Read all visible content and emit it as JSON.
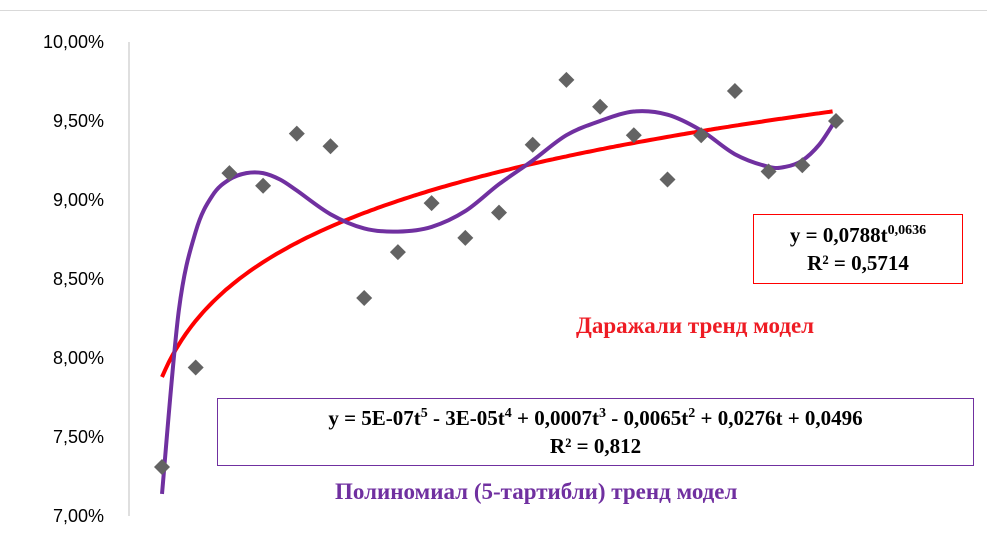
{
  "colors": {
    "points": "#636363",
    "power_trend": "#ff0000",
    "poly_trend": "#7030a0",
    "axis": "#bfbfbf"
  },
  "chart_data": {
    "type": "scatter",
    "title": "",
    "xlabel": "",
    "ylabel": "",
    "ylim": [
      0.07,
      0.1
    ],
    "xlim": [
      1,
      21
    ],
    "y_ticks": [
      "7,00%",
      "7,50%",
      "8,00%",
      "8,50%",
      "9,00%",
      "9,50%",
      "10,00%"
    ],
    "y_tick_values": [
      0.07,
      0.075,
      0.08,
      0.085,
      0.09,
      0.095,
      0.1
    ],
    "grid": false,
    "series": [
      {
        "kind": "points",
        "marker": "diamond",
        "x": [
          1,
          2,
          3,
          4,
          5,
          6,
          7,
          8,
          9,
          10,
          11,
          12,
          13,
          14,
          15,
          16,
          17,
          18,
          19,
          20,
          21
        ],
        "y": [
          0.0731,
          0.0794,
          0.0917,
          0.0909,
          0.0942,
          0.0934,
          0.0838,
          0.0867,
          0.0898,
          0.0876,
          0.0892,
          0.0935,
          0.0976,
          0.0959,
          0.0941,
          0.0913,
          0.0941,
          0.0969,
          0.0918,
          0.0922,
          0.095
        ]
      },
      {
        "name": "Даражали тренд модел",
        "kind": "power_trend",
        "coefficients": {
          "a": 0.0788,
          "b": 0.0636
        }
      },
      {
        "name": "Полиномиал (5-тартибли) тренд модел",
        "kind": "poly_trend"
      }
    ]
  },
  "annotations": {
    "power_equation": {
      "main": "y = 0,0788t",
      "exp": "0,0636",
      "r2": "R² = 0,5714"
    },
    "poly_equation": {
      "p1": "y = 5E-07t",
      "s1": "5",
      "p2": " - 3E-05t",
      "s2": "4",
      "p3": " + 0,0007t",
      "s3": "3",
      "p4": " - 0,0065t",
      "s4": "2",
      "p5": " + 0,0276t + 0,0496",
      "r2": "R² = 0,812"
    },
    "power_label": "Даражали тренд модел",
    "poly_label": "Полиномиал (5-тартибли) тренд модел"
  }
}
